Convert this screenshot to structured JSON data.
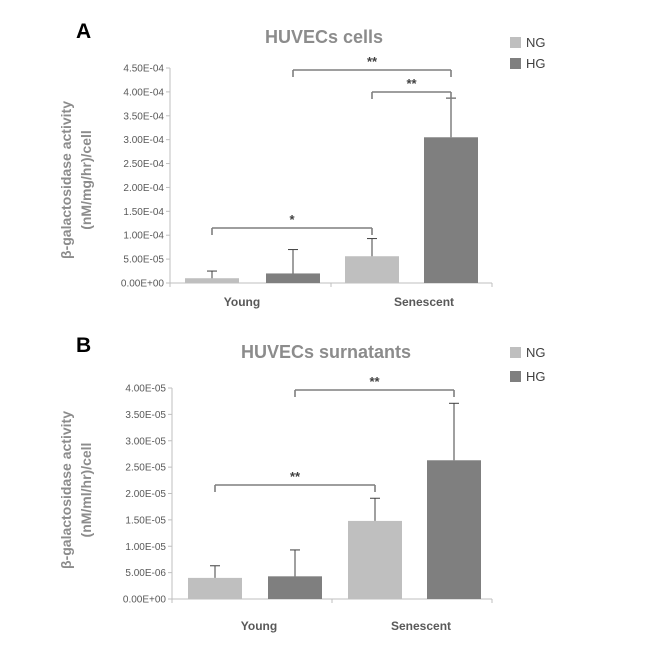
{
  "colors": {
    "NG": "#bfbfbf",
    "HG": "#7f7f7f",
    "axis": "#bfbfbf",
    "errorbar": "#404040",
    "bracket": "#7f7f7f"
  },
  "chart_data": [
    {
      "panel": "A",
      "type": "bar",
      "title": "HUVECs cells",
      "ylabel_line1": "β-galactosidase activity",
      "ylabel_line2": "(nM/mg/hr)/cell",
      "categories": [
        "Young",
        "Senescent"
      ],
      "series": [
        {
          "name": "NG",
          "values": [
            1e-05,
            5.6e-05
          ],
          "errors": [
            1.5e-05,
            3.7e-05
          ]
        },
        {
          "name": "HG",
          "values": [
            2e-05,
            0.000305
          ],
          "errors": [
            5e-05,
            8.2e-05
          ]
        }
      ],
      "ylim": [
        0,
        0.00045
      ],
      "yticks": [
        0,
        5e-05,
        0.0001,
        0.00015,
        0.0002,
        0.00025,
        0.0003,
        0.00035,
        0.0004,
        0.00045
      ],
      "ytick_labels": [
        "0.00E+00",
        "5.00E-05",
        "1.00E-04",
        "1.50E-04",
        "2.00E-04",
        "2.50E-04",
        "3.00E-04",
        "3.50E-04",
        "4.00E-04",
        "4.50E-04"
      ],
      "legend": [
        "NG",
        "HG"
      ],
      "legend_position": "top-right",
      "grid": false,
      "significance": [
        {
          "from": [
            0,
            "NG"
          ],
          "to": [
            1,
            "NG"
          ],
          "label": "*"
        },
        {
          "from": [
            0,
            "HG"
          ],
          "to": [
            1,
            "HG"
          ],
          "label": "**"
        },
        {
          "from": [
            1,
            "NG"
          ],
          "to": [
            1,
            "HG"
          ],
          "label": "**"
        }
      ]
    },
    {
      "panel": "B",
      "type": "bar",
      "title": "HUVECs surnatants",
      "ylabel_line1": "β-galactosidase activity",
      "ylabel_line2": "(nM/ml/hr)/cell",
      "categories": [
        "Young",
        "Senescent"
      ],
      "series": [
        {
          "name": "NG",
          "values": [
            4e-06,
            1.48e-05
          ],
          "errors": [
            2.3e-06,
            4.3e-06
          ]
        },
        {
          "name": "HG",
          "values": [
            4.3e-06,
            2.63e-05
          ],
          "errors": [
            5e-06,
            1.08e-05
          ]
        }
      ],
      "ylim": [
        0,
        4e-05
      ],
      "yticks": [
        0,
        5e-06,
        1e-05,
        1.5e-05,
        2e-05,
        2.5e-05,
        3e-05,
        3.5e-05,
        4e-05
      ],
      "ytick_labels": [
        "0.00E+00",
        "5.00E-06",
        "1.00E-05",
        "1.50E-05",
        "2.00E-05",
        "2.50E-05",
        "3.00E-05",
        "3.50E-05",
        "4.00E-05"
      ],
      "legend": [
        "NG",
        "HG"
      ],
      "legend_position": "top-right",
      "grid": false,
      "significance": [
        {
          "from": [
            0,
            "NG"
          ],
          "to": [
            1,
            "NG"
          ],
          "label": "**"
        },
        {
          "from": [
            0,
            "HG"
          ],
          "to": [
            1,
            "HG"
          ],
          "label": "**"
        }
      ]
    }
  ]
}
